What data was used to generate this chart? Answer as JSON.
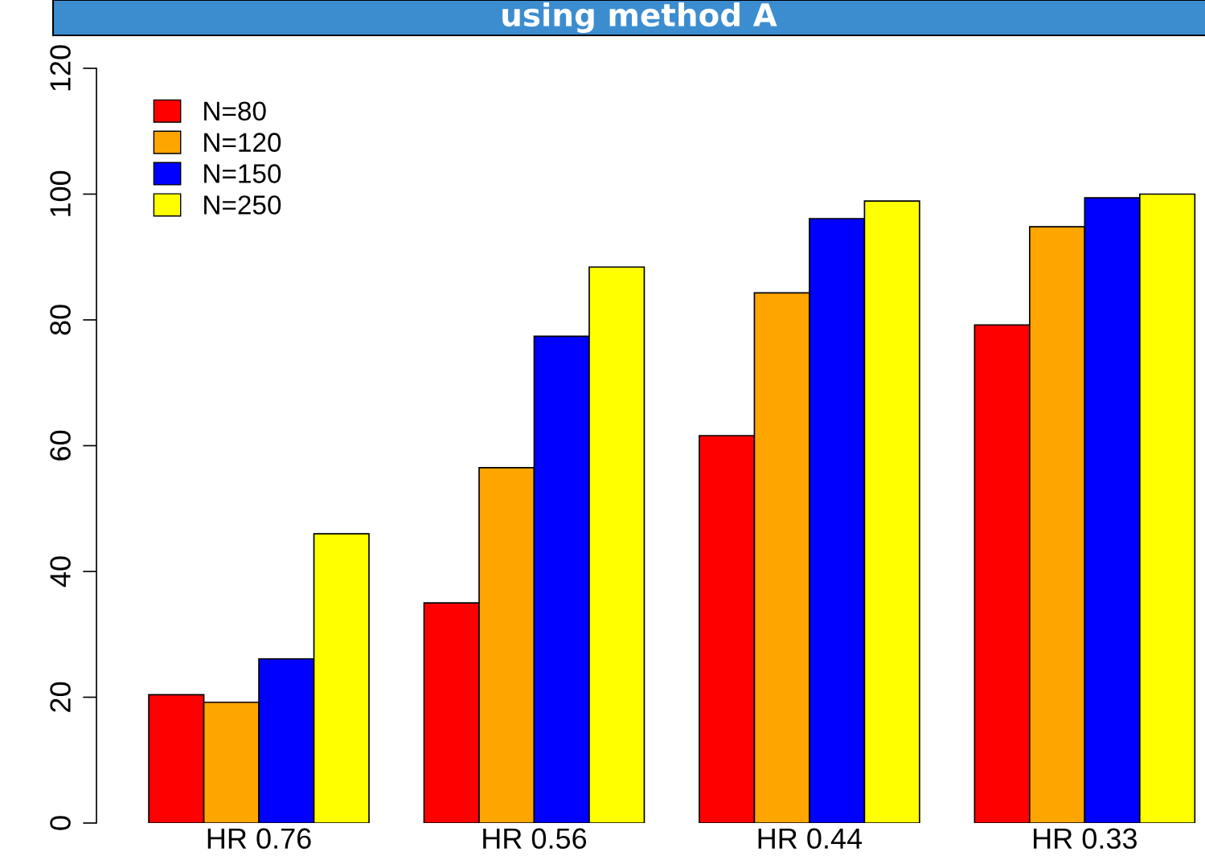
{
  "chart_data": {
    "type": "bar",
    "title": "using method A",
    "categories": [
      "HR 0.76",
      "HR 0.56",
      "HR 0.44",
      "HR 0.33"
    ],
    "series": [
      {
        "name": "N=80",
        "color": "#ff0000",
        "values": [
          20.4,
          35.0,
          61.6,
          79.2
        ]
      },
      {
        "name": "N=120",
        "color": "#ffa500",
        "values": [
          19.2,
          56.5,
          84.3,
          94.8
        ]
      },
      {
        "name": "N=150",
        "color": "#0000ff",
        "values": [
          26.1,
          77.4,
          96.1,
          99.4
        ]
      },
      {
        "name": "N=250",
        "color": "#ffff00",
        "values": [
          46.0,
          88.4,
          98.9,
          100
        ]
      }
    ],
    "ylim": [
      0,
      120
    ],
    "yticks": [
      0,
      20,
      40,
      60,
      80,
      100,
      120
    ],
    "grid": false,
    "legend": "top left"
  }
}
